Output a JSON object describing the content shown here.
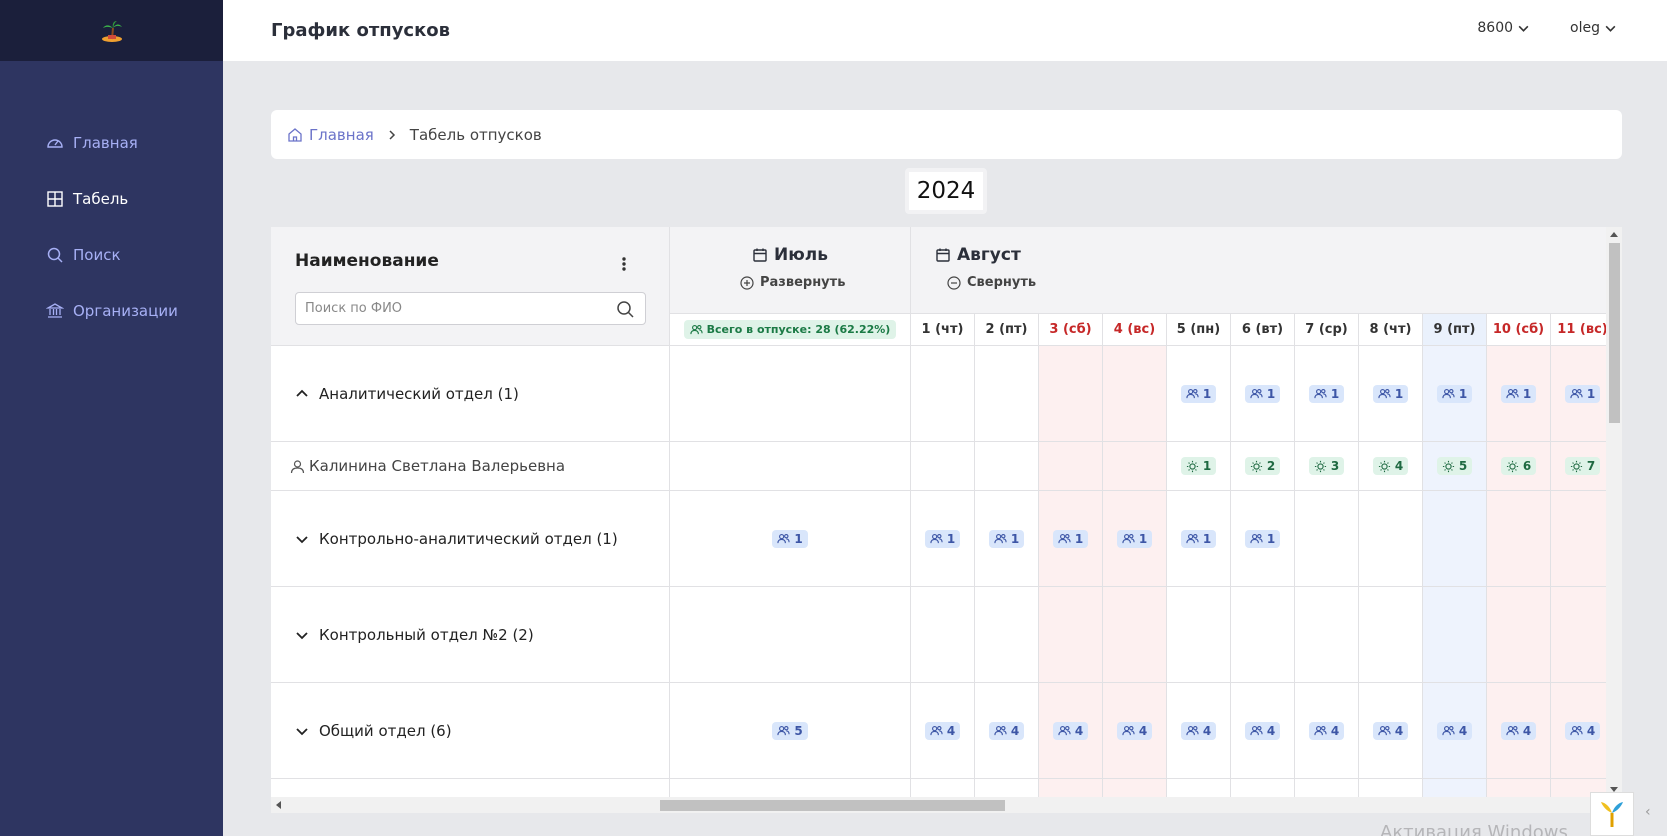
{
  "app": {
    "logo_icon": "palm-island-icon"
  },
  "sidebar": {
    "items": [
      {
        "label": "Главная",
        "icon": "dashboard-icon",
        "active": false
      },
      {
        "label": "Табель",
        "icon": "table-icon",
        "active": true
      },
      {
        "label": "Поиск",
        "icon": "search-icon",
        "active": false
      },
      {
        "label": "Организации",
        "icon": "bank-icon",
        "active": false
      }
    ]
  },
  "header": {
    "title": "График отпусков",
    "org_select": "8600",
    "user_menu": "oleg"
  },
  "breadcrumb": {
    "home": "Главная",
    "current": "Табель отпусков"
  },
  "year": "2024",
  "table": {
    "name_header": "Наименование",
    "search_placeholder": "Поиск по ФИО",
    "months": [
      {
        "name": "Июль",
        "toggle": "Развернуть"
      },
      {
        "name": "Август",
        "toggle": "Свернуть"
      }
    ],
    "total_badge": "Всего в отпуске: 28 (62.22%)",
    "days": [
      {
        "label": "1 (чт)",
        "weekend": false,
        "today": false
      },
      {
        "label": "2 (пт)",
        "weekend": false,
        "today": false
      },
      {
        "label": "3 (сб)",
        "weekend": true,
        "today": false
      },
      {
        "label": "4 (вс)",
        "weekend": true,
        "today": false
      },
      {
        "label": "5 (пн)",
        "weekend": false,
        "today": false
      },
      {
        "label": "6 (вт)",
        "weekend": false,
        "today": false
      },
      {
        "label": "7 (ср)",
        "weekend": false,
        "today": false
      },
      {
        "label": "8 (чт)",
        "weekend": false,
        "today": false
      },
      {
        "label": "9 (пт)",
        "weekend": false,
        "today": true
      },
      {
        "label": "10 (сб)",
        "weekend": true,
        "today": false
      },
      {
        "label": "11 (вс)",
        "weekend": true,
        "today": false
      }
    ],
    "rows": [
      {
        "type": "group",
        "expanded": true,
        "label": "Аналитический отдел (1)",
        "july": "",
        "days": [
          "",
          "",
          "",
          "",
          "1",
          "1",
          "1",
          "1",
          "1",
          "1",
          "1"
        ]
      },
      {
        "type": "person",
        "label": "Калинина Светлана Валерьевна",
        "july": "",
        "days": [
          "",
          "",
          "",
          "",
          "1",
          "2",
          "3",
          "4",
          "5",
          "6",
          "7"
        ]
      },
      {
        "type": "group",
        "expanded": false,
        "label": "Контрольно-аналитический отдел (1)",
        "july": "1",
        "days": [
          "1",
          "1",
          "1",
          "1",
          "1",
          "1",
          "",
          "",
          "",
          "",
          ""
        ]
      },
      {
        "type": "group",
        "expanded": false,
        "label": "Контрольный отдел №2 (2)",
        "july": "",
        "days": [
          "",
          "",
          "",
          "",
          "",
          "",
          "",
          "",
          "",
          "",
          ""
        ]
      },
      {
        "type": "group",
        "expanded": false,
        "label": "Общий отдел (6)",
        "july": "5",
        "days": [
          "4",
          "4",
          "4",
          "4",
          "4",
          "4",
          "4",
          "4",
          "4",
          "4",
          "4"
        ]
      },
      {
        "type": "group",
        "expanded": false,
        "label": "",
        "july": "",
        "days": [
          "",
          "",
          "",
          "",
          "",
          "",
          "",
          "",
          "",
          "",
          ""
        ]
      }
    ]
  },
  "watermark": "Активация Windows",
  "colors": {
    "sidebar": "#2e3561",
    "accent": "#6b73c9",
    "weekend": "#c62828"
  }
}
